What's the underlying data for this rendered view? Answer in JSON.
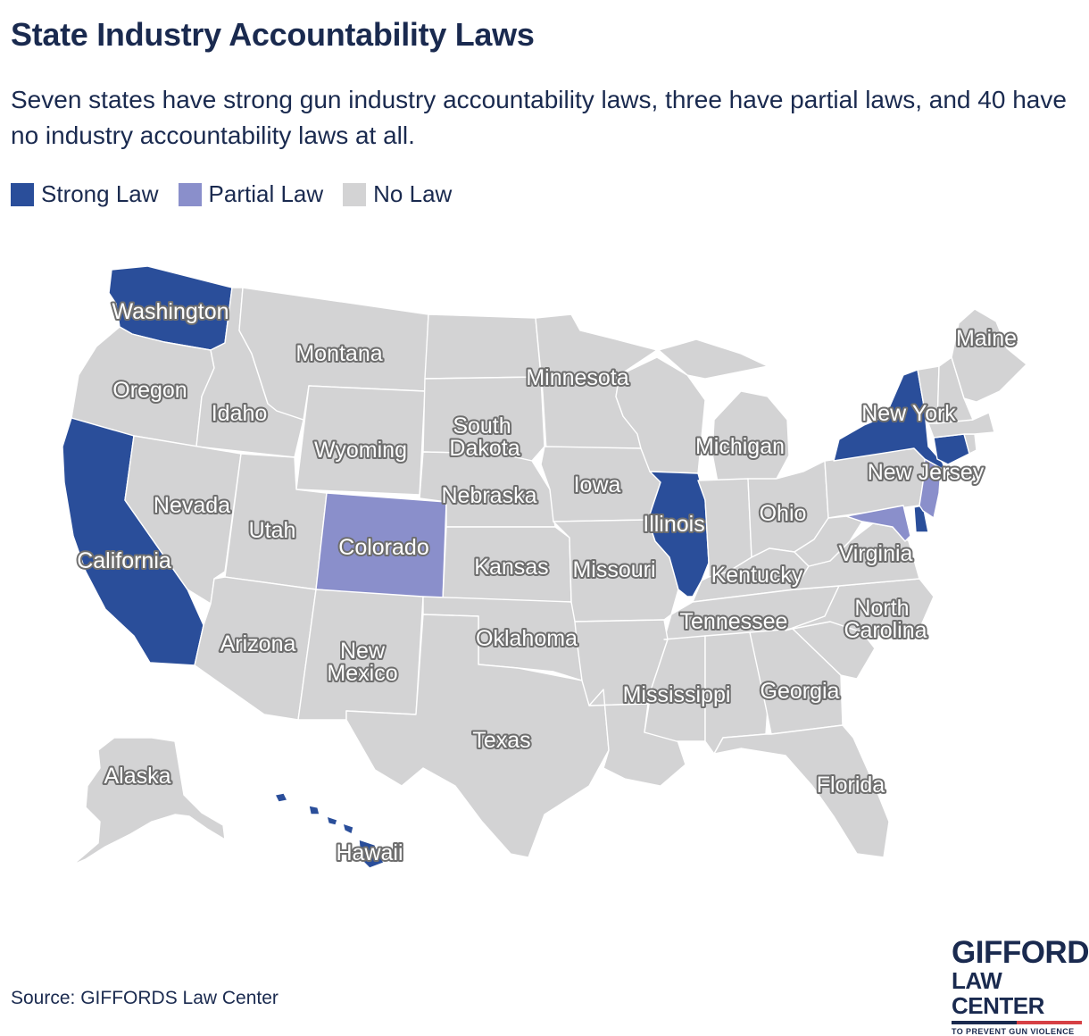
{
  "title": "State Industry Accountability Laws",
  "subtitle": "Seven states have strong gun industry accountability laws, three have partial laws, and 40 have no industry accountability laws at all.",
  "colors": {
    "strong": "#2a4e9a",
    "partial": "#8a8fcb",
    "none": "#d3d3d4",
    "border": "#ffffff",
    "brand_blue": "#1a2a4f",
    "brand_red": "#d64045"
  },
  "legend": [
    {
      "label": "Strong Law",
      "status": "strong"
    },
    {
      "label": "Partial Law",
      "status": "partial"
    },
    {
      "label": "No Law",
      "status": "none"
    }
  ],
  "states": [
    {
      "name": "Washington",
      "status": "strong"
    },
    {
      "name": "Oregon",
      "status": "none"
    },
    {
      "name": "California",
      "status": "strong"
    },
    {
      "name": "Idaho",
      "status": "none"
    },
    {
      "name": "Nevada",
      "status": "none"
    },
    {
      "name": "Montana",
      "status": "none"
    },
    {
      "name": "Wyoming",
      "status": "none"
    },
    {
      "name": "Utah",
      "status": "none"
    },
    {
      "name": "Arizona",
      "status": "none"
    },
    {
      "name": "Colorado",
      "status": "partial"
    },
    {
      "name": "New Mexico",
      "status": "none"
    },
    {
      "name": "South Dakota",
      "status": "none"
    },
    {
      "name": "Nebraska",
      "status": "none"
    },
    {
      "name": "Kansas",
      "status": "none"
    },
    {
      "name": "Oklahoma",
      "status": "none"
    },
    {
      "name": "Texas",
      "status": "none"
    },
    {
      "name": "Minnesota",
      "status": "none"
    },
    {
      "name": "Iowa",
      "status": "none"
    },
    {
      "name": "Missouri",
      "status": "none"
    },
    {
      "name": "Illinois",
      "status": "strong"
    },
    {
      "name": "Michigan",
      "status": "none"
    },
    {
      "name": "Ohio",
      "status": "none"
    },
    {
      "name": "Kentucky",
      "status": "none"
    },
    {
      "name": "Tennessee",
      "status": "none"
    },
    {
      "name": "Mississippi",
      "status": "none"
    },
    {
      "name": "Georgia",
      "status": "none"
    },
    {
      "name": "Florida",
      "status": "none"
    },
    {
      "name": "North Carolina",
      "status": "none"
    },
    {
      "name": "Virginia",
      "status": "none"
    },
    {
      "name": "New York",
      "status": "strong"
    },
    {
      "name": "New Jersey",
      "status": "partial"
    },
    {
      "name": "Maine",
      "status": "none"
    },
    {
      "name": "Alaska",
      "status": "none"
    },
    {
      "name": "Hawaii",
      "status": "strong"
    },
    {
      "name": "Connecticut",
      "status": "strong"
    },
    {
      "name": "Delaware",
      "status": "strong"
    },
    {
      "name": "Maryland",
      "status": "partial"
    }
  ],
  "source": "Source: GIFFORDS Law Center",
  "logo": {
    "line1": "GIFFORDS",
    "line2": "LAW CENTER",
    "tagline": "TO PREVENT GUN VIOLENCE"
  }
}
